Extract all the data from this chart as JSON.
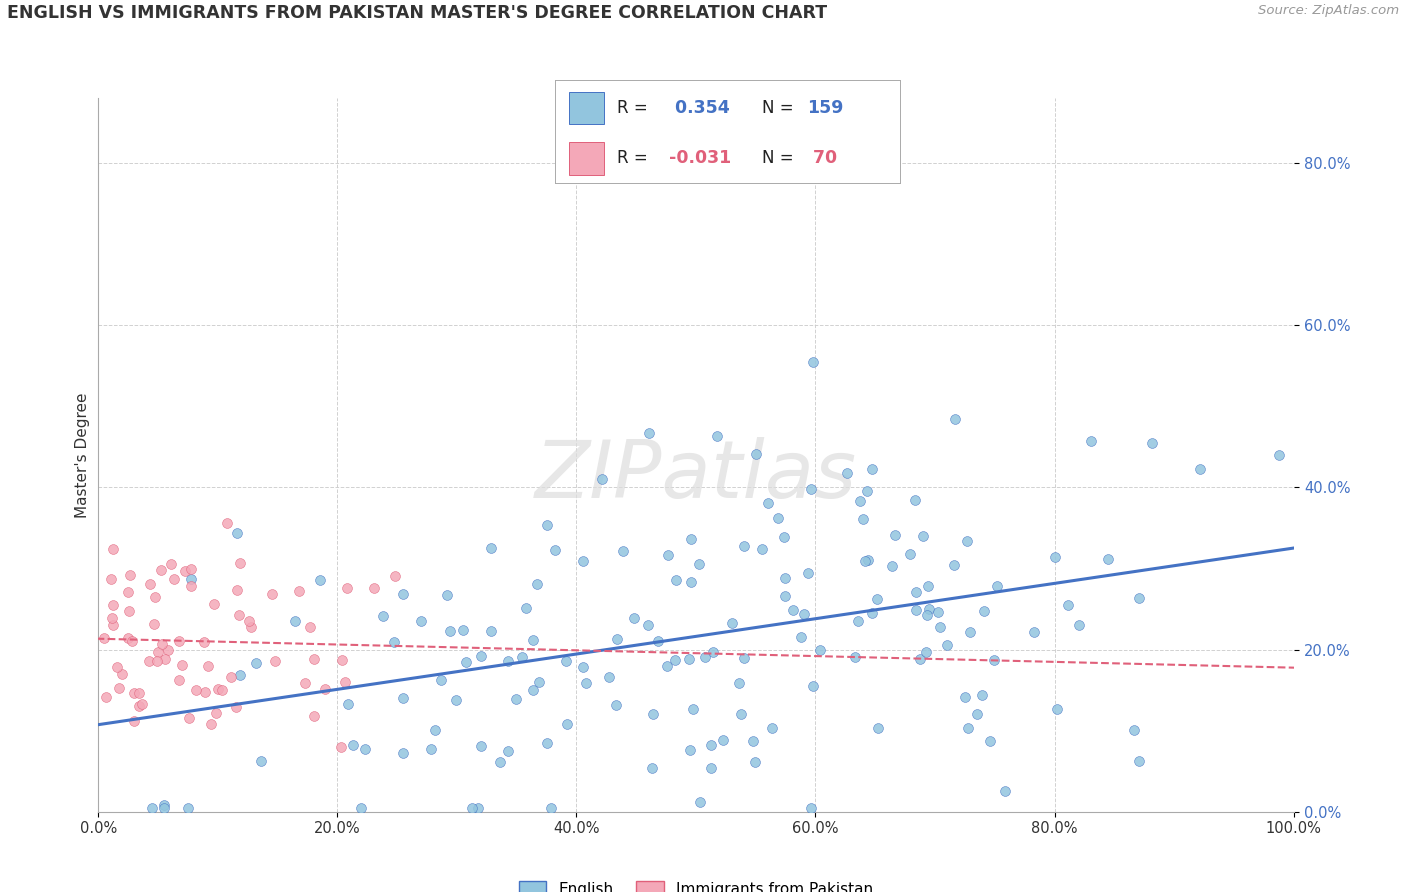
{
  "title": "ENGLISH VS IMMIGRANTS FROM PAKISTAN MASTER'S DEGREE CORRELATION CHART",
  "source": "Source: ZipAtlas.com",
  "ylabel": "Master's Degree",
  "legend_labels": [
    "English",
    "Immigrants from Pakistan"
  ],
  "r_english": 0.354,
  "n_english": 159,
  "r_pakistan": -0.031,
  "n_pakistan": 70,
  "color_english": "#92C5DE",
  "color_pakistan": "#F4A8B8",
  "color_line_english": "#4472C4",
  "color_line_pakistan": "#E0607A",
  "watermark": "ZIPatlas",
  "xlim": [
    0.0,
    1.0
  ],
  "ylim": [
    0.0,
    0.88
  ],
  "x_ticks": [
    0.0,
    0.2,
    0.4,
    0.6,
    0.8,
    1.0
  ],
  "x_tick_labels": [
    "0.0%",
    "20.0%",
    "40.0%",
    "60.0%",
    "80.0%",
    "100.0%"
  ],
  "y_ticks": [
    0.0,
    0.2,
    0.4,
    0.6,
    0.8
  ],
  "y_tick_labels": [
    "0.0%",
    "20.0%",
    "40.0%",
    "60.0%",
    "80.0%"
  ]
}
